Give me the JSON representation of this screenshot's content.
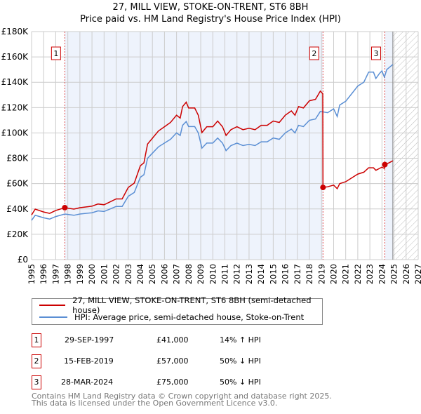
{
  "title": "27, MILL VIEW, STOKE-ON-TRENT, ST6 8BH",
  "subtitle": "Price paid vs. HM Land Registry's House Price Index (HPI)",
  "colors": {
    "property": "#cc0000",
    "hpi": "#5b8fd4",
    "shade": "#eef3fc",
    "grid": "#cccccc"
  },
  "chart_data": {
    "type": "line",
    "title": "Price paid vs. HM Land Registry's House Price Index (HPI)",
    "xlim": [
      1995,
      2027
    ],
    "ylim": [
      0,
      180000
    ],
    "x_ticks": [
      "1995",
      "1996",
      "1997",
      "1998",
      "1999",
      "2000",
      "2001",
      "2002",
      "2003",
      "2004",
      "2005",
      "2006",
      "2007",
      "2008",
      "2009",
      "2010",
      "2011",
      "2012",
      "2013",
      "2014",
      "2015",
      "2016",
      "2017",
      "2018",
      "2019",
      "2020",
      "2021",
      "2022",
      "2023",
      "2024",
      "2025",
      "2026",
      "2027"
    ],
    "y_ticks": [
      {
        "v": 0,
        "label": "£0"
      },
      {
        "v": 20000,
        "label": "£20K"
      },
      {
        "v": 40000,
        "label": "£40K"
      },
      {
        "v": 60000,
        "label": "£60K"
      },
      {
        "v": 80000,
        "label": "£80K"
      },
      {
        "v": 100000,
        "label": "£100K"
      },
      {
        "v": 120000,
        "label": "£120K"
      },
      {
        "v": 140000,
        "label": "£140K"
      },
      {
        "v": 160000,
        "label": "£160K"
      },
      {
        "v": 180000,
        "label": "£180K"
      }
    ],
    "forecast_from": 2024.9,
    "series": [
      {
        "name": "27, MILL VIEW, STOKE-ON-TRENT, ST6 8BH (semi-detached house)",
        "color": "#cc0000",
        "x": [
          1995,
          1995.3,
          1996,
          1996.5,
          1997,
          1997.75,
          1998.5,
          1999,
          2000,
          2000.5,
          2001,
          2001.5,
          2002,
          2002.5,
          2003,
          2003.5,
          2004,
          2004.3,
          2004.6,
          2005,
          2005.5,
          2006,
          2006.5,
          2007,
          2007.3,
          2007.5,
          2007.8,
          2008,
          2008.5,
          2008.8,
          2009.1,
          2009.5,
          2010,
          2010.4,
          2010.8,
          2011.1,
          2011.5,
          2012,
          2012.5,
          2013,
          2013.5,
          2014,
          2014.5,
          2015,
          2015.5,
          2016,
          2016.5,
          2016.8,
          2017.1,
          2017.5,
          2018,
          2018.5,
          2018.9,
          2019.1,
          2019.12,
          2019.5,
          2020,
          2020.3,
          2020.5,
          2021,
          2021.5,
          2022,
          2022.5,
          2022.9,
          2023.3,
          2023.5,
          2023.8,
          2024,
          2024.2,
          2024.24,
          2024.4,
          2024.9
        ],
        "y": [
          35300,
          39900,
          37600,
          36500,
          38800,
          41000,
          39900,
          41000,
          42200,
          43900,
          43300,
          45600,
          47900,
          47900,
          57000,
          60400,
          74100,
          76400,
          91200,
          95800,
          101500,
          104900,
          108300,
          114000,
          111700,
          120800,
          124300,
          119700,
          119700,
          114000,
          100300,
          104900,
          104900,
          109400,
          104900,
          98000,
          102600,
          104900,
          102600,
          103700,
          102600,
          106000,
          106000,
          109400,
          108300,
          114000,
          117400,
          114000,
          120800,
          119700,
          125400,
          126500,
          133000,
          131000,
          57000,
          57500,
          58800,
          56000,
          60000,
          61500,
          64500,
          67500,
          69000,
          72500,
          72500,
          70500,
          72000,
          73000,
          72000,
          75000,
          75500,
          78000
        ]
      },
      {
        "name": "HPI: Average price, semi-detached house, Stoke-on-Trent",
        "color": "#5b8fd4",
        "x": [
          1995,
          1995.3,
          1996,
          1996.5,
          1997,
          1997.75,
          1998.5,
          1999,
          2000,
          2000.5,
          2001,
          2001.5,
          2002,
          2002.5,
          2003,
          2003.5,
          2004,
          2004.3,
          2004.6,
          2005,
          2005.5,
          2006,
          2006.5,
          2007,
          2007.3,
          2007.5,
          2007.8,
          2008,
          2008.5,
          2008.8,
          2009.1,
          2009.5,
          2010,
          2010.4,
          2010.8,
          2011.1,
          2011.5,
          2012,
          2012.5,
          2013,
          2013.5,
          2014,
          2014.5,
          2015,
          2015.5,
          2016,
          2016.5,
          2016.8,
          2017.1,
          2017.5,
          2018,
          2018.5,
          2018.9,
          2019.5,
          2020,
          2020.3,
          2020.5,
          2021,
          2021.5,
          2022,
          2022.5,
          2022.9,
          2023.3,
          2023.5,
          2023.8,
          2024,
          2024.2,
          2024.4,
          2024.9
        ],
        "y": [
          31000,
          35000,
          33000,
          32000,
          34000,
          36000,
          35000,
          36000,
          37000,
          38500,
          38000,
          40000,
          42000,
          42000,
          50000,
          53000,
          65000,
          67000,
          80000,
          84000,
          89000,
          92000,
          95000,
          100000,
          98000,
          106000,
          109000,
          105000,
          105000,
          100000,
          88000,
          92000,
          92000,
          96000,
          92000,
          86000,
          90000,
          92000,
          90000,
          91000,
          90000,
          93000,
          93000,
          96000,
          95000,
          100000,
          103000,
          100000,
          106000,
          105000,
          110000,
          111000,
          117000,
          116000,
          119000,
          113000,
          122000,
          125000,
          131000,
          137000,
          140000,
          148000,
          148000,
          143000,
          147000,
          149000,
          144000,
          150000,
          154000
        ]
      }
    ],
    "sales": [
      {
        "n": "1",
        "x": 1997.75,
        "y": 41000
      },
      {
        "n": "2",
        "x": 2019.12,
        "y": 57000
      },
      {
        "n": "3",
        "x": 2024.24,
        "y": 75000
      }
    ]
  },
  "legend": {
    "property": "27, MILL VIEW, STOKE-ON-TRENT, ST6 8BH (semi-detached house)",
    "hpi": "HPI: Average price, semi-detached house, Stoke-on-Trent"
  },
  "sales_table": [
    {
      "n": "1",
      "date": "29-SEP-1997",
      "price": "£41,000",
      "delta": "14% ↑ HPI"
    },
    {
      "n": "2",
      "date": "15-FEB-2019",
      "price": "£57,000",
      "delta": "50% ↓ HPI"
    },
    {
      "n": "3",
      "date": "28-MAR-2024",
      "price": "£75,000",
      "delta": "50% ↓ HPI"
    }
  ],
  "footer": {
    "line1": "Contains HM Land Registry data © Crown copyright and database right 2025.",
    "line2": "This data is licensed under the Open Government Licence v3.0."
  }
}
